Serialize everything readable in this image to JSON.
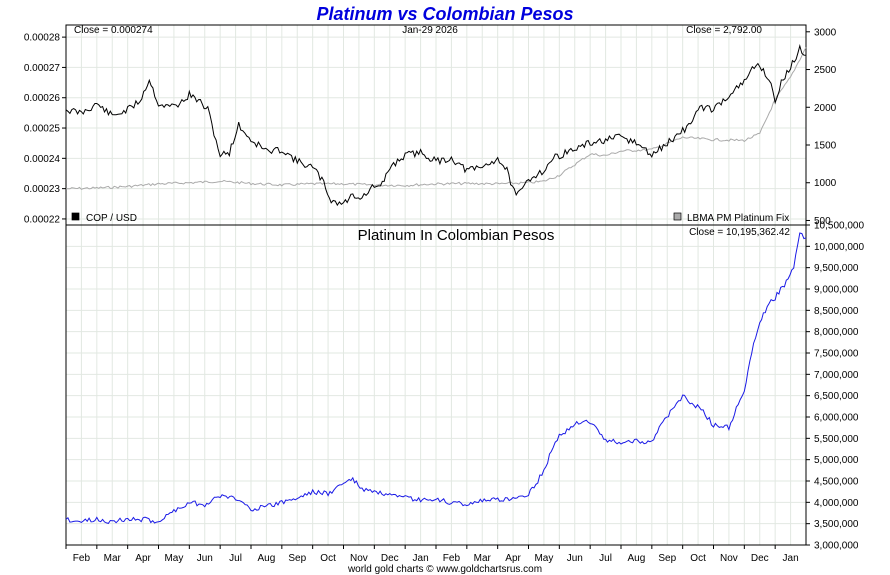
{
  "title": "Platinum vs Colombian Pesos",
  "footer": "world gold charts © www.goldchartsrus.com",
  "colors": {
    "title": "#0000dd",
    "cop_line": "#000000",
    "platinum_line": "#aaaaaa",
    "pesos_line": "#1a1ae6",
    "grid": "#e2e8e2",
    "frame": "#000000"
  },
  "chart_data": [
    {
      "type": "line",
      "header": {
        "left": "Close = 0.000274",
        "center": "Jan-29  2026",
        "right": "Close = 2,792.00"
      },
      "legend": [
        {
          "label": "COP / USD",
          "swatch": "#000000",
          "position": "bottom-left"
        },
        {
          "label": "LBMA PM Platinum Fix",
          "swatch": "#aaaaaa",
          "position": "bottom-right"
        }
      ],
      "x_ticks": [
        "Feb",
        "Mar",
        "Apr",
        "May",
        "Jun",
        "Jul",
        "Aug",
        "Sep",
        "Oct",
        "Nov",
        "Dec",
        "Jan",
        "Feb",
        "Mar",
        "Apr",
        "May",
        "Jun",
        "Jul",
        "Aug",
        "Sep",
        "Oct",
        "Nov",
        "Dec",
        "Jan"
      ],
      "y_left": {
        "range": [
          0.000218,
          0.000284
        ],
        "ticks": [
          0.00022,
          0.00023,
          0.00024,
          0.00025,
          0.00026,
          0.00027,
          0.00028
        ],
        "tick_labels": [
          "0.00022",
          "0.00023",
          "0.00024",
          "0.00025",
          "0.00026",
          "0.00027",
          "0.00028"
        ]
      },
      "y_right": {
        "range": [
          440,
          3090
        ],
        "ticks": [
          500,
          1000,
          1500,
          2000,
          2500,
          3000
        ],
        "tick_labels": [
          "500",
          "1000",
          "1500",
          "2000",
          "2500",
          "3000"
        ]
      },
      "series": [
        {
          "name": "COP / USD",
          "axis": "left",
          "x": [
            0,
            0.5,
            1,
            1.5,
            2,
            2.4,
            2.7,
            3,
            3.3,
            3.7,
            4,
            4.3,
            4.6,
            5,
            5.3,
            5.6,
            6,
            6.3,
            6.6,
            7,
            7.5,
            8,
            8.3,
            8.6,
            9,
            9.3,
            9.6,
            10,
            10.2,
            10.5,
            11,
            11.5,
            12,
            12.5,
            13,
            13.5,
            14,
            14.3,
            14.6,
            15,
            15.3,
            15.5,
            15.8,
            16,
            16.5,
            17,
            17.5,
            18,
            18.5,
            19,
            19.5,
            20,
            20.2,
            20.5,
            20.8,
            21,
            21.5,
            22,
            22.2,
            22.5,
            22.8,
            23,
            23.2,
            23.5,
            23.8,
            24
          ],
          "values": [
            0.000256,
            0.000255,
            0.000258,
            0.000254,
            0.000256,
            0.000259,
            0.000266,
            0.000258,
            0.000257,
            0.000258,
            0.000261,
            0.000259,
            0.000256,
            0.000241,
            0.000242,
            0.000251,
            0.000246,
            0.000244,
            0.000242,
            0.000243,
            0.000239,
            0.000237,
            0.000233,
            0.000226,
            0.000225,
            0.000228,
            0.000227,
            0.000231,
            0.00023,
            0.000237,
            0.000241,
            0.000242,
            0.000239,
            0.00024,
            0.000236,
            0.000237,
            0.00024,
            0.000236,
            0.000227,
            0.000233,
            0.000235,
            0.000236,
            0.00024,
            0.000241,
            0.000243,
            0.000245,
            0.000246,
            0.000247,
            0.000245,
            0.000241,
            0.000245,
            0.000249,
            0.000251,
            0.000256,
            0.000257,
            0.000256,
            0.000261,
            0.000265,
            0.000269,
            0.000271,
            0.000266,
            0.000259,
            0.000265,
            0.00027,
            0.000276,
            0.000274
          ]
        },
        {
          "name": "LBMA PM Platinum Fix",
          "axis": "right",
          "x": [
            0,
            1,
            2,
            3,
            4,
            5,
            6,
            7,
            8,
            9,
            10,
            11,
            12,
            13,
            14,
            15,
            15.5,
            16,
            17,
            17.5,
            18,
            19,
            20,
            21,
            22,
            22.5,
            23,
            23.5,
            24
          ],
          "values": [
            920,
            930,
            950,
            985,
            1000,
            1020,
            990,
            970,
            985,
            985,
            970,
            965,
            985,
            990,
            985,
            1000,
            1020,
            1100,
            1380,
            1360,
            1420,
            1440,
            1600,
            1570,
            1560,
            1650,
            2100,
            2400,
            2792
          ]
        }
      ]
    },
    {
      "type": "line",
      "title": "Platinum In Colombian Pesos",
      "header": {
        "right": "Close = 10,195,362.42"
      },
      "x_ticks": [
        "Feb",
        "Mar",
        "Apr",
        "May",
        "Jun",
        "Jul",
        "Aug",
        "Sep",
        "Oct",
        "Nov",
        "Dec",
        "Jan",
        "Feb",
        "Mar",
        "Apr",
        "May",
        "Jun",
        "Jul",
        "Aug",
        "Sep",
        "Oct",
        "Nov",
        "Dec",
        "Jan"
      ],
      "y_right": {
        "range": [
          3000000,
          10500000
        ],
        "ticks": [
          3000000,
          3500000,
          4000000,
          4500000,
          5000000,
          5500000,
          6000000,
          6500000,
          7000000,
          7500000,
          8000000,
          8500000,
          9000000,
          9500000,
          10000000,
          10500000
        ],
        "tick_labels": [
          "3,000,000",
          "3,500,000",
          "4,000,000",
          "4,500,000",
          "5,000,000",
          "5,500,000",
          "6,000,000",
          "6,500,000",
          "7,000,000",
          "7,500,000",
          "8,000,000",
          "8,500,000",
          "9,000,000",
          "9,500,000",
          "10,000,000",
          "10,500,000"
        ]
      },
      "series": [
        {
          "name": "Platinum In Colombian Pesos",
          "axis": "right",
          "x": [
            0,
            0.5,
            1,
            1.5,
            2,
            2.5,
            3,
            3.5,
            4,
            4.5,
            5,
            5.5,
            6,
            6.5,
            7,
            7.5,
            8,
            8.5,
            9,
            9.3,
            9.6,
            10,
            10.5,
            11,
            11.5,
            12,
            12.5,
            13,
            13.5,
            14,
            14.5,
            15,
            15.3,
            15.5,
            15.8,
            16,
            16.5,
            17,
            17.5,
            18,
            18.5,
            19,
            19.3,
            19.6,
            20,
            20.3,
            20.6,
            21,
            21.5,
            21.8,
            22,
            22.3,
            22.5,
            22.8,
            23,
            23.3,
            23.6,
            23.8,
            24
          ],
          "values": [
            3600000,
            3550000,
            3600000,
            3550000,
            3600000,
            3600000,
            3550000,
            3800000,
            4000000,
            3950000,
            4150000,
            4100000,
            3850000,
            3900000,
            4000000,
            4100000,
            4250000,
            4200000,
            4450000,
            4550000,
            4300000,
            4250000,
            4150000,
            4100000,
            4050000,
            4050000,
            4000000,
            3950000,
            4050000,
            4050000,
            4100000,
            4200000,
            4500000,
            4750000,
            5300000,
            5550000,
            5850000,
            5900000,
            5450000,
            5400000,
            5450000,
            5400000,
            5800000,
            6100000,
            6500000,
            6300000,
            6200000,
            5800000,
            5750000,
            6300000,
            6600000,
            7700000,
            8200000,
            8700000,
            8800000,
            9100000,
            9500000,
            10300000,
            10200000
          ]
        }
      ]
    }
  ]
}
